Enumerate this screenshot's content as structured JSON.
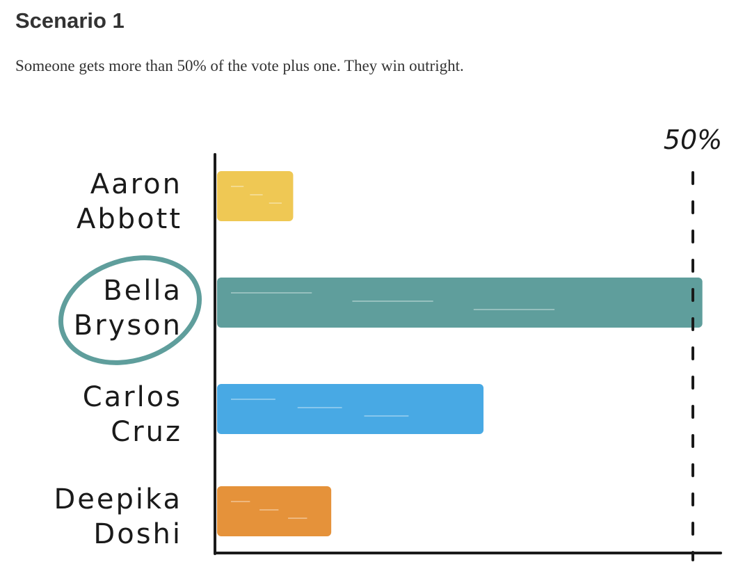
{
  "heading": "Scenario 1",
  "intro": "Someone gets more than 50% of the vote plus one. They win outright.",
  "chart_data": {
    "type": "bar",
    "orientation": "horizontal",
    "categories": [
      [
        "Aaron",
        "Abbott"
      ],
      [
        "Bella",
        "Bryson"
      ],
      [
        "Carlos",
        "Cruz"
      ],
      [
        "Deepika",
        "Doshi"
      ]
    ],
    "values": [
      8,
      51,
      28,
      12
    ],
    "colors": [
      "#efc854",
      "#5f9e9c",
      "#48a9e4",
      "#e5923a"
    ],
    "circled_category_index": 1,
    "circle_color": "#5f9e9c",
    "xlim": [
      0,
      60
    ],
    "reference_line": {
      "value": 50,
      "label": "50%",
      "style": "dashed"
    },
    "grid": false,
    "legend": "none"
  }
}
